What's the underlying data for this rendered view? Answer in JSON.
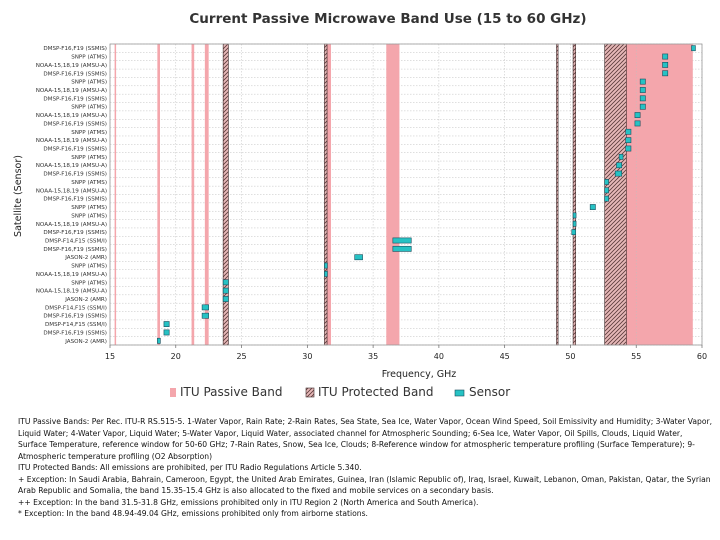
{
  "chart_data": {
    "type": "bar",
    "title": "Current Passive Microwave Band Use (15 to 60 GHz)",
    "xlabel": "Frequency, GHz",
    "ylabel": "Satellite (Sensor)",
    "xlim": [
      15,
      60
    ],
    "xticks": [
      15,
      20,
      25,
      30,
      35,
      40,
      45,
      50,
      55,
      60
    ],
    "legend": {
      "placement": "bottom",
      "items": [
        "ITU Passive Band",
        "ITU Protected Band",
        "Sensor"
      ]
    },
    "colors": {
      "passive": "#f4a6ac",
      "protected_hatch": "#7a4b4b",
      "sensor_fill": "#26c2c4",
      "sensor_stroke": "#1a4d5c",
      "grid": "#bfbfbf"
    },
    "passive_bands": [
      [
        15.35,
        15.4
      ],
      [
        18.6,
        18.8
      ],
      [
        21.2,
        21.4
      ],
      [
        22.21,
        22.5
      ],
      [
        23.6,
        24.0
      ],
      [
        31.3,
        31.8
      ],
      [
        36.0,
        37.0
      ],
      [
        50.2,
        50.4
      ],
      [
        52.6,
        59.3
      ]
    ],
    "protected_bands": [
      [
        23.6,
        24.0
      ],
      [
        31.3,
        31.5
      ],
      [
        48.94,
        49.04
      ],
      [
        50.2,
        50.4
      ],
      [
        52.6,
        54.25
      ]
    ],
    "rows": [
      {
        "label": "JASON-2 (AMR)",
        "sensors": [
          [
            18.6,
            18.8
          ]
        ]
      },
      {
        "label": "DMSP-F16,F19 (SSMIS)",
        "sensors": [
          [
            19.1,
            19.5
          ]
        ]
      },
      {
        "label": "DMSP-F14,F15 (SSM/I)",
        "sensors": [
          [
            19.1,
            19.5
          ]
        ]
      },
      {
        "label": "DMSP-F16,F19 (SSMIS)",
        "sensors": [
          [
            22.0,
            22.5
          ]
        ]
      },
      {
        "label": "DMSP-F14,F15 (SSM/I)",
        "sensors": [
          [
            22.0,
            22.5
          ]
        ]
      },
      {
        "label": "JASON-2 (AMR)",
        "sensors": [
          [
            23.6,
            24.0
          ]
        ]
      },
      {
        "label": "NOAA-15,18,19 (AMSU-A)",
        "sensors": [
          [
            23.6,
            24.0
          ]
        ]
      },
      {
        "label": "SNPP (ATMS)",
        "sensors": [
          [
            23.6,
            24.0
          ]
        ]
      },
      {
        "label": "NOAA-15,18,19 (AMSU-A)",
        "sensors": [
          [
            31.3,
            31.5
          ]
        ]
      },
      {
        "label": "SNPP (ATMS)",
        "sensors": [
          [
            31.3,
            31.5
          ]
        ]
      },
      {
        "label": "JASON-2 (AMR)",
        "sensors": [
          [
            33.6,
            34.2
          ]
        ]
      },
      {
        "label": "DMSP-F16,F19 (SSMIS)",
        "sensors": [
          [
            36.5,
            37.9
          ]
        ]
      },
      {
        "label": "DMSP-F14,F15 (SSM/I)",
        "sensors": [
          [
            36.5,
            37.9
          ]
        ]
      },
      {
        "label": "DMSP-F16,F19 (SSMIS)",
        "sensors": [
          [
            50.1,
            50.4
          ]
        ]
      },
      {
        "label": "NOAA-15,18,19 (AMSU-A)",
        "sensors": [
          [
            50.2,
            50.4
          ]
        ]
      },
      {
        "label": "SNPP (ATMS)",
        "sensors": [
          [
            50.2,
            50.4
          ]
        ]
      },
      {
        "label": "SNPP (ATMS)",
        "sensors": [
          [
            51.5,
            51.9
          ]
        ]
      },
      {
        "label": "DMSP-F16,F19 (SSMIS)",
        "sensors": [
          [
            52.6,
            52.9
          ]
        ]
      },
      {
        "label": "NOAA-15,18,19 (AMSU-A)",
        "sensors": [
          [
            52.6,
            52.9
          ]
        ]
      },
      {
        "label": "SNPP (ATMS)",
        "sensors": [
          [
            52.6,
            52.9
          ]
        ]
      },
      {
        "label": "DMSP-F16,F19 (SSMIS)",
        "sensors": [
          [
            53.4,
            53.9
          ]
        ]
      },
      {
        "label": "NOAA-15,18,19 (AMSU-A)",
        "sensors": [
          [
            53.5,
            53.9
          ]
        ]
      },
      {
        "label": "SNPP (ATMS)",
        "sensors": [
          [
            53.7,
            54.0
          ]
        ]
      },
      {
        "label": "DMSP-F16,F19 (SSMIS)",
        "sensors": [
          [
            54.2,
            54.6
          ]
        ]
      },
      {
        "label": "NOAA-15,18,19 (AMSU-A)",
        "sensors": [
          [
            54.2,
            54.6
          ]
        ]
      },
      {
        "label": "SNPP (ATMS)",
        "sensors": [
          [
            54.2,
            54.6
          ]
        ]
      },
      {
        "label": "DMSP-F16,F19 (SSMIS)",
        "sensors": [
          [
            54.9,
            55.3
          ]
        ]
      },
      {
        "label": "NOAA-15,18,19 (AMSU-A)",
        "sensors": [
          [
            54.9,
            55.3
          ]
        ]
      },
      {
        "label": "SNPP (ATMS)",
        "sensors": [
          [
            55.3,
            55.7
          ]
        ]
      },
      {
        "label": "DMSP-F16,F19 (SSMIS)",
        "sensors": [
          [
            55.3,
            55.7
          ]
        ]
      },
      {
        "label": "NOAA-15,18,19 (AMSU-A)",
        "sensors": [
          [
            55.3,
            55.7
          ]
        ]
      },
      {
        "label": "SNPP (ATMS)",
        "sensors": [
          [
            55.3,
            55.7
          ]
        ]
      },
      {
        "label": "DMSP-F16,F19 (SSMIS)",
        "sensors": [
          [
            57.0,
            57.4
          ]
        ]
      },
      {
        "label": "NOAA-15,18,19 (AMSU-A)",
        "sensors": [
          [
            57.0,
            57.4
          ]
        ]
      },
      {
        "label": "SNPP (ATMS)",
        "sensors": [
          [
            57.0,
            57.4
          ]
        ]
      },
      {
        "label": "DMSP-F16,F19 (SSMIS)",
        "sensors": [
          [
            59.2,
            59.5
          ]
        ]
      }
    ]
  },
  "notes": [
    "ITU Passive Bands: Per Rec. ITU-R RS.515-5. 1-Water Vapor, Rain Rate; 2-Rain Rates, Sea State, Sea Ice, Water Vapor, Ocean Wind Speed, Soil Emissivity and Humidity; 3-Water Vapor, Liquid Water; 4-Water Vapor, Liquid Water; 5-Water Vapor, Liquid Water, associated channel for Atmospheric Sounding; 6-Sea Ice, Water Vapor, Oil Spills, Clouds, Liquid Water, Surface Temperature, reference window for 50-60 GHz; 7-Rain Rates, Snow, Sea Ice, Clouds; 8-Reference window for atmospheric temperature profiling (Surface Temperature); 9-Atmospheric temperature profiling (O2 Absorption)",
    "ITU Protected Bands: All emissions are prohibited, per ITU Radio Regulations Article 5.340.",
    "+ Exception: In Saudi Arabia, Bahrain, Cameroon, Egypt, the United Arab Emirates, Guinea, Iran (Islamic Republic of), Iraq, Israel, Kuwait, Lebanon, Oman, Pakistan, Qatar, the Syrian Arab Republic and Somalia, the band 15.35-15.4 GHz is also allocated to the fixed and mobile services on a secondary basis.",
    "++ Exception: In the band 31.5-31.8 GHz, emissions prohibited only in ITU Region 2 (North America and South America).",
    "* Exception: In the band 48.94-49.04 GHz, emissions prohibited only from airborne stations."
  ]
}
